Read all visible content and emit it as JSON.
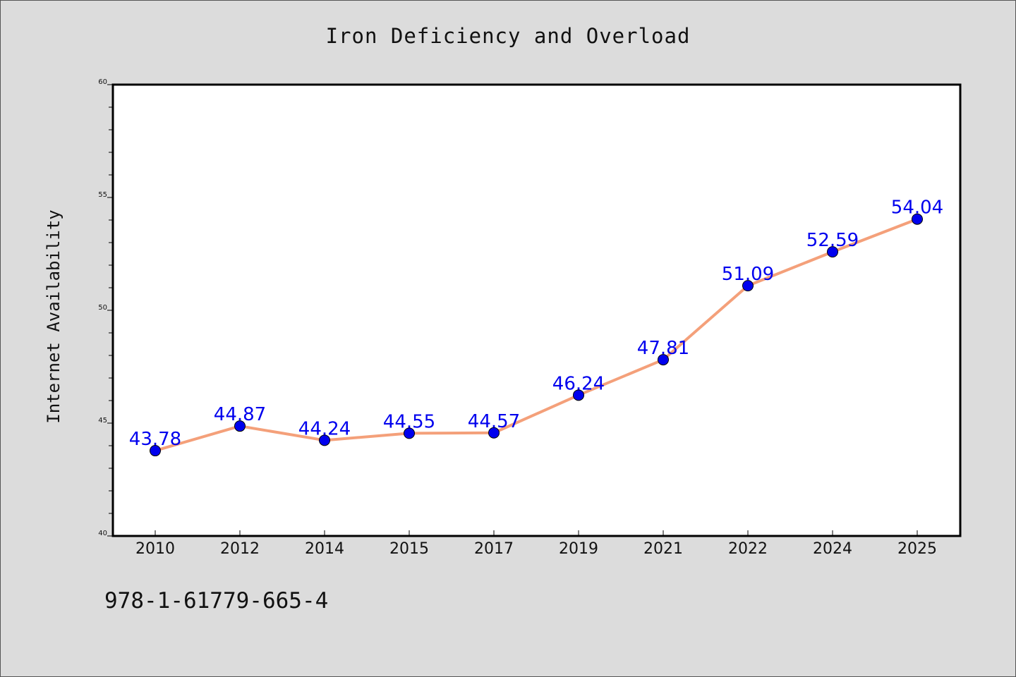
{
  "chart_data": {
    "type": "line",
    "title": "Iron Deficiency and Overload",
    "xlabel": "",
    "ylabel": "Internet Availability",
    "categories": [
      "2010",
      "2012",
      "2014",
      "2015",
      "2017",
      "2019",
      "2021",
      "2022",
      "2024",
      "2025"
    ],
    "series": [
      {
        "values": [
          43.78,
          44.87,
          44.24,
          44.55,
          44.57,
          46.24,
          47.81,
          51.09,
          52.59,
          54.04
        ],
        "labels": [
          "43.78",
          "44.87",
          "44.24",
          "44.55",
          "44.57",
          "46.24",
          "47.81",
          "51.09",
          "52.59",
          "54.04"
        ],
        "line_color": "#f4a07a",
        "marker_color": "#0000ee",
        "label_color": "#0000ee"
      }
    ],
    "ylim": [
      40,
      60
    ],
    "yticks": [
      "40",
      "45",
      "50",
      "55",
      "60"
    ],
    "grid": false,
    "legend": "none"
  },
  "footer": {
    "isbn": "978-1-61779-665-4"
  }
}
